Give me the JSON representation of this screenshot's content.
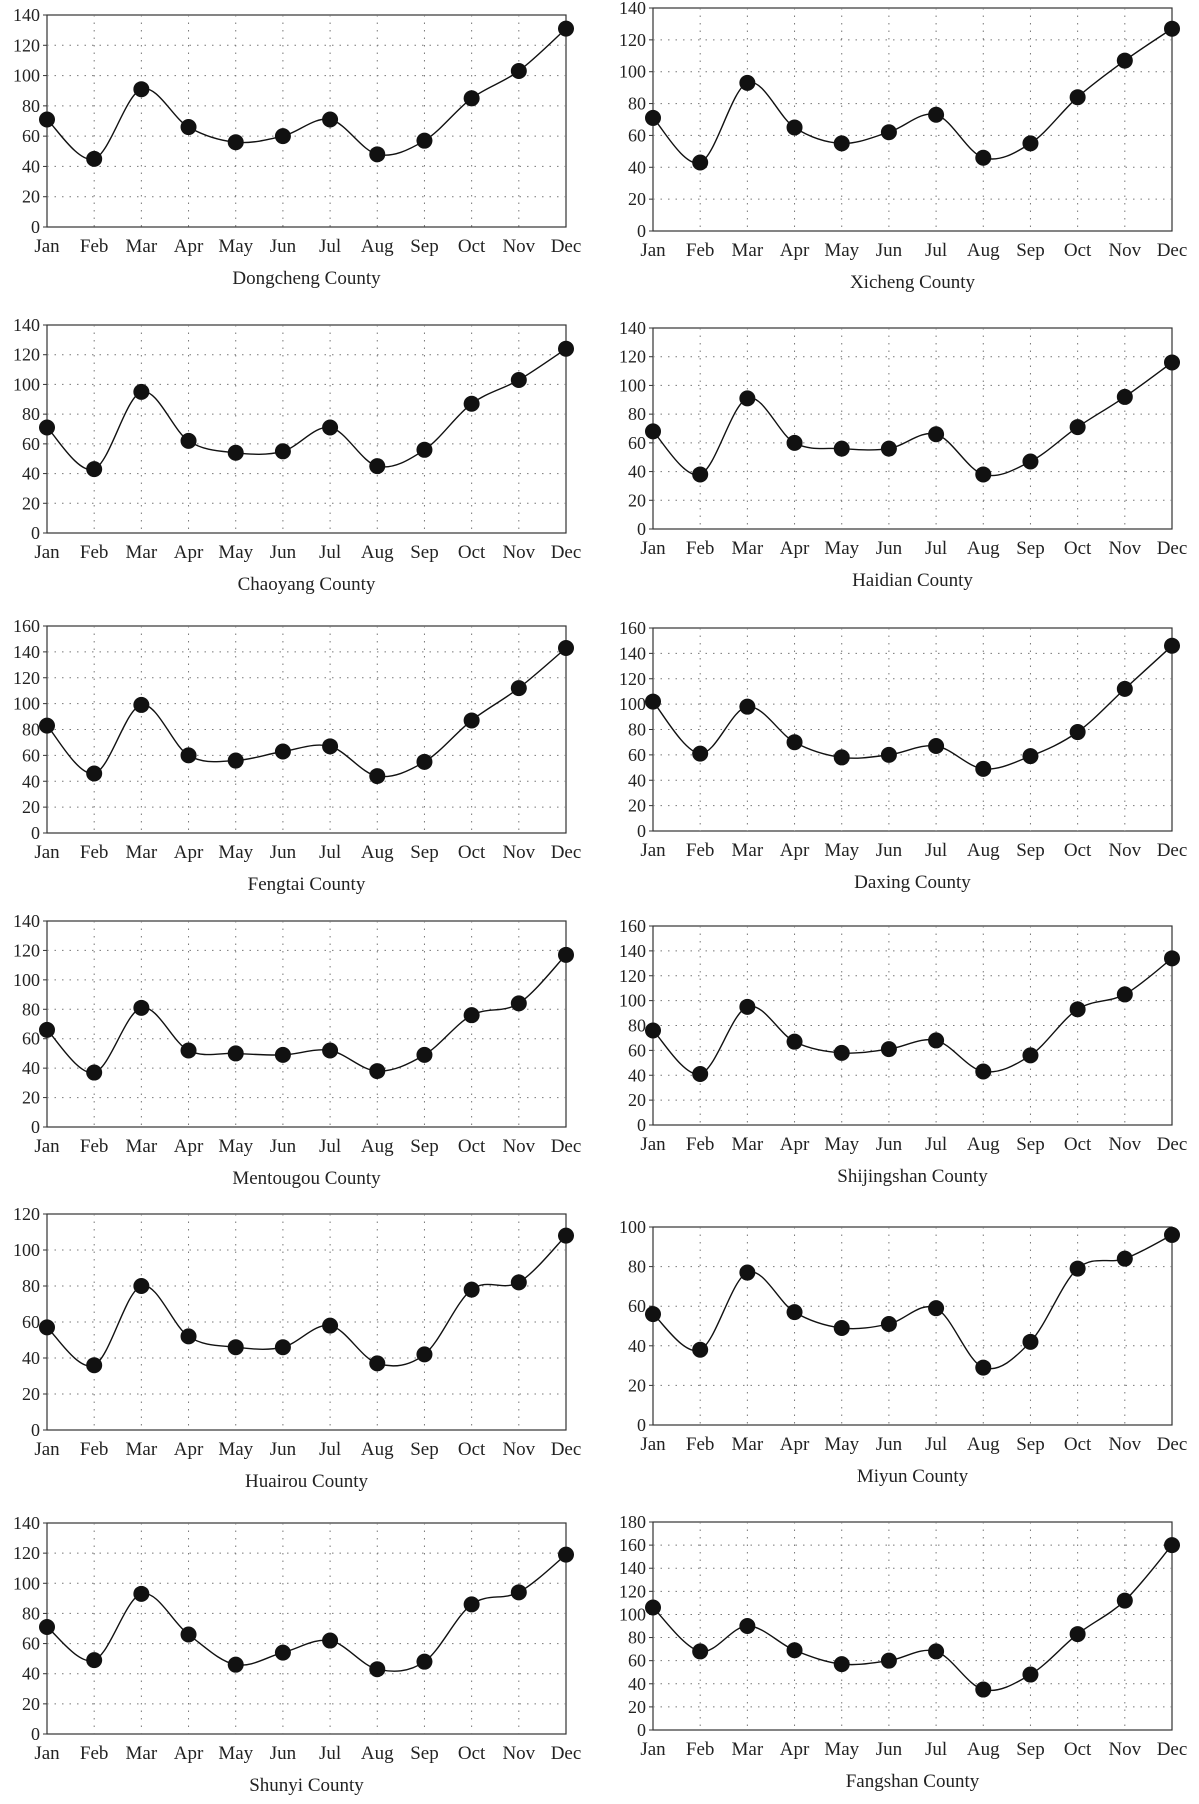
{
  "chart_data": [
    {
      "type": "line",
      "title": "Dongcheng County",
      "categories": [
        "Jan",
        "Feb",
        "Mar",
        "Apr",
        "May",
        "Jun",
        "Jul",
        "Aug",
        "Sep",
        "Oct",
        "Nov",
        "Dec"
      ],
      "values": [
        71,
        45,
        91,
        66,
        56,
        60,
        71,
        48,
        57,
        85,
        103,
        131
      ],
      "ylim": [
        0,
        140
      ],
      "yticks": [
        0,
        20,
        40,
        60,
        80,
        100,
        120,
        140
      ],
      "grid": true
    },
    {
      "type": "line",
      "title": "Xicheng County",
      "categories": [
        "Jan",
        "Feb",
        "Mar",
        "Apr",
        "May",
        "Jun",
        "Jul",
        "Aug",
        "Sep",
        "Oct",
        "Nov",
        "Dec"
      ],
      "values": [
        71,
        43,
        93,
        65,
        55,
        62,
        73,
        46,
        55,
        84,
        107,
        127
      ],
      "ylim": [
        0,
        140
      ],
      "yticks": [
        0,
        20,
        40,
        60,
        80,
        100,
        120,
        140
      ],
      "grid": true
    },
    {
      "type": "line",
      "title": "Chaoyang County",
      "categories": [
        "Jan",
        "Feb",
        "Mar",
        "Apr",
        "May",
        "Jun",
        "Jul",
        "Aug",
        "Sep",
        "Oct",
        "Nov",
        "Dec"
      ],
      "values": [
        71,
        43,
        95,
        62,
        54,
        55,
        71,
        45,
        56,
        87,
        103,
        124
      ],
      "ylim": [
        0,
        140
      ],
      "yticks": [
        0,
        20,
        40,
        60,
        80,
        100,
        120,
        140
      ],
      "grid": true
    },
    {
      "type": "line",
      "title": "Haidian County",
      "categories": [
        "Jan",
        "Feb",
        "Mar",
        "Apr",
        "May",
        "Jun",
        "Jul",
        "Aug",
        "Sep",
        "Oct",
        "Nov",
        "Dec"
      ],
      "values": [
        68,
        38,
        91,
        60,
        56,
        56,
        66,
        38,
        47,
        71,
        92,
        116
      ],
      "ylim": [
        0,
        140
      ],
      "yticks": [
        0,
        20,
        40,
        60,
        80,
        100,
        120,
        140
      ],
      "grid": true
    },
    {
      "type": "line",
      "title": "Fengtai County",
      "categories": [
        "Jan",
        "Feb",
        "Mar",
        "Apr",
        "May",
        "Jun",
        "Jul",
        "Aug",
        "Sep",
        "Oct",
        "Nov",
        "Dec"
      ],
      "values": [
        83,
        46,
        99,
        60,
        56,
        63,
        67,
        44,
        55,
        87,
        112,
        143
      ],
      "ylim": [
        0,
        160
      ],
      "yticks": [
        0,
        20,
        40,
        60,
        80,
        100,
        120,
        140,
        160
      ],
      "grid": true
    },
    {
      "type": "line",
      "title": "Daxing County",
      "categories": [
        "Jan",
        "Feb",
        "Mar",
        "Apr",
        "May",
        "Jun",
        "Jul",
        "Aug",
        "Sep",
        "Oct",
        "Nov",
        "Dec"
      ],
      "values": [
        102,
        61,
        98,
        70,
        58,
        60,
        67,
        49,
        59,
        78,
        112,
        146
      ],
      "ylim": [
        0,
        160
      ],
      "yticks": [
        0,
        20,
        40,
        60,
        80,
        100,
        120,
        140,
        160
      ],
      "grid": true
    },
    {
      "type": "line",
      "title": "Mentougou County",
      "categories": [
        "Jan",
        "Feb",
        "Mar",
        "Apr",
        "May",
        "Jun",
        "Jul",
        "Aug",
        "Sep",
        "Oct",
        "Nov",
        "Dec"
      ],
      "values": [
        66,
        37,
        81,
        52,
        50,
        49,
        52,
        38,
        49,
        76,
        84,
        117
      ],
      "ylim": [
        0,
        140
      ],
      "yticks": [
        0,
        20,
        40,
        60,
        80,
        100,
        120,
        140
      ],
      "grid": true
    },
    {
      "type": "line",
      "title": "Shijingshan County",
      "categories": [
        "Jan",
        "Feb",
        "Mar",
        "Apr",
        "May",
        "Jun",
        "Jul",
        "Aug",
        "Sep",
        "Oct",
        "Nov",
        "Dec"
      ],
      "values": [
        76,
        41,
        95,
        67,
        58,
        61,
        68,
        43,
        56,
        93,
        105,
        134
      ],
      "ylim": [
        0,
        160
      ],
      "yticks": [
        0,
        20,
        40,
        60,
        80,
        100,
        120,
        140,
        160
      ],
      "grid": true
    },
    {
      "type": "line",
      "title": "Huairou County",
      "categories": [
        "Jan",
        "Feb",
        "Mar",
        "Apr",
        "May",
        "Jun",
        "Jul",
        "Aug",
        "Sep",
        "Oct",
        "Nov",
        "Dec"
      ],
      "values": [
        57,
        36,
        80,
        52,
        46,
        46,
        58,
        37,
        42,
        78,
        82,
        108
      ],
      "ylim": [
        0,
        120
      ],
      "yticks": [
        0,
        20,
        40,
        60,
        80,
        100,
        120
      ],
      "grid": true
    },
    {
      "type": "line",
      "title": "Miyun County",
      "categories": [
        "Jan",
        "Feb",
        "Mar",
        "Apr",
        "May",
        "Jun",
        "Jul",
        "Aug",
        "Sep",
        "Oct",
        "Nov",
        "Dec"
      ],
      "values": [
        56,
        38,
        77,
        57,
        49,
        51,
        59,
        29,
        42,
        79,
        84,
        96
      ],
      "ylim": [
        0,
        100
      ],
      "yticks": [
        0,
        20,
        40,
        60,
        80,
        100
      ],
      "grid": true
    },
    {
      "type": "line",
      "title": "Shunyi County",
      "categories": [
        "Jan",
        "Feb",
        "Mar",
        "Apr",
        "May",
        "Jun",
        "Jul",
        "Aug",
        "Sep",
        "Oct",
        "Nov",
        "Dec"
      ],
      "values": [
        71,
        49,
        93,
        66,
        46,
        54,
        62,
        43,
        48,
        86,
        94,
        119
      ],
      "ylim": [
        0,
        140
      ],
      "yticks": [
        0,
        20,
        40,
        60,
        80,
        100,
        120,
        140
      ],
      "grid": true
    },
    {
      "type": "line",
      "title": "Fangshan County",
      "categories": [
        "Jan",
        "Feb",
        "Mar",
        "Apr",
        "May",
        "Jun",
        "Jul",
        "Aug",
        "Sep",
        "Oct",
        "Nov",
        "Dec"
      ],
      "values": [
        106,
        68,
        90,
        69,
        57,
        60,
        68,
        35,
        48,
        83,
        112,
        160
      ],
      "ylim": [
        0,
        180
      ],
      "yticks": [
        0,
        20,
        40,
        60,
        80,
        100,
        120,
        140,
        160,
        180
      ],
      "grid": true
    }
  ]
}
